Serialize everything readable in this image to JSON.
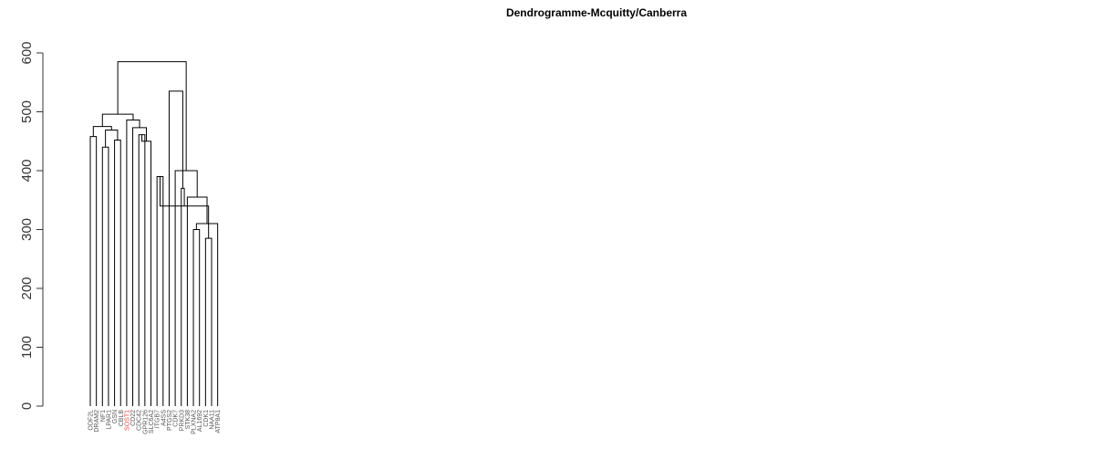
{
  "chart_data": {
    "type": "dendrogram",
    "title": "Dendrogramme-Mcquitty/Canberra",
    "ylim": [
      0,
      600
    ],
    "yticks": [
      0,
      100,
      200,
      300,
      400,
      500,
      600
    ],
    "leaves": [
      {
        "label": "ODF2L",
        "color": "#555555"
      },
      {
        "label": "DRAM2",
        "color": "#555555"
      },
      {
        "label": "NF1",
        "color": "#555555"
      },
      {
        "label": "LPAR1",
        "color": "#555555"
      },
      {
        "label": "GSN",
        "color": "#555555"
      },
      {
        "label": "CBLB",
        "color": "#555555"
      },
      {
        "label": "SOST1",
        "color": "#e8453c"
      },
      {
        "label": "CD22",
        "color": "#555555"
      },
      {
        "label": "CDC42",
        "color": "#555555"
      },
      {
        "label": "GPR126",
        "color": "#555555"
      },
      {
        "label": "SLC6A2",
        "color": "#555555"
      },
      {
        "label": "ITGB7",
        "color": "#555555"
      },
      {
        "label": "A4SS",
        "color": "#555555"
      },
      {
        "label": "PTGS2",
        "color": "#555555"
      },
      {
        "label": "CDK7",
        "color": "#555555"
      },
      {
        "label": "PRKD3",
        "color": "#555555"
      },
      {
        "label": "STK38",
        "color": "#555555"
      },
      {
        "label": "PLXNA2",
        "color": "#555555"
      },
      {
        "label": "AL1692",
        "color": "#555555"
      },
      {
        "label": "CDK1",
        "color": "#555555"
      },
      {
        "label": "NAA11",
        "color": "#555555"
      },
      {
        "label": "ATP8A1",
        "color": "#555555"
      }
    ],
    "merges": [
      {
        "height": 458,
        "children": [
          0,
          1
        ]
      },
      {
        "height": 440,
        "children": [
          2,
          3
        ]
      },
      {
        "height": 452,
        "children": [
          4,
          5
        ]
      },
      {
        "height": 469,
        "children": [
          -2,
          -3
        ]
      },
      {
        "height": 475,
        "children": [
          -1,
          -4
        ]
      },
      {
        "height": 461,
        "children": [
          8,
          9
        ]
      },
      {
        "height": 450,
        "children": [
          10,
          -6
        ]
      },
      {
        "height": 473,
        "children": [
          7,
          -7
        ]
      },
      {
        "height": 486,
        "children": [
          6,
          -8
        ]
      },
      {
        "height": 496,
        "children": [
          -5,
          -9
        ]
      },
      {
        "height": 390,
        "children": [
          11,
          12
        ]
      },
      {
        "height": 300,
        "children": [
          17,
          18
        ]
      },
      {
        "height": 285,
        "children": [
          19,
          20
        ]
      },
      {
        "height": 310,
        "children": [
          -12,
          21
        ]
      },
      {
        "height": 340,
        "children": [
          -11,
          -13
        ]
      },
      {
        "height": 355,
        "children": [
          16,
          -14
        ]
      },
      {
        "height": 370,
        "children": [
          15,
          -15
        ]
      },
      {
        "height": 400,
        "children": [
          14,
          -16
        ]
      },
      {
        "height": 535,
        "children": [
          13,
          -17
        ]
      },
      {
        "height": 585,
        "children": [
          -10,
          -18
        ]
      }
    ]
  }
}
